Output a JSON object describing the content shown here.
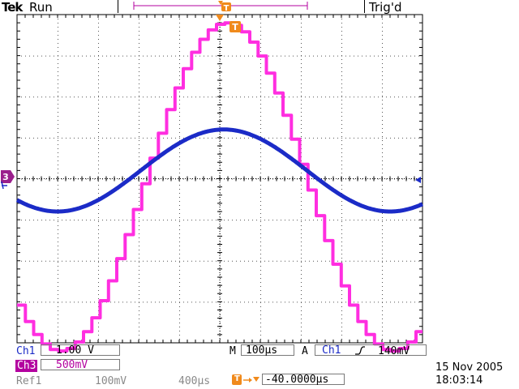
{
  "header": {
    "brand": "Tek",
    "acquisition_status": "Run",
    "trigger_status": "Trig'd"
  },
  "markers": {
    "trigger_position": "T",
    "trigger_time": "T",
    "ch3_ground": "3"
  },
  "readouts": {
    "ch1": {
      "label": "Ch1",
      "scale": "1.00 V"
    },
    "ch3": {
      "label": "Ch3",
      "scale": "500mV"
    },
    "ref1": {
      "label": "Ref1",
      "scale": "100mV",
      "time": "400µs"
    },
    "horizontal": {
      "mode": "M",
      "scale": "100µs"
    },
    "trigger": {
      "mode": "A",
      "source": "Ch1",
      "slope": "rising",
      "level": "140mV"
    },
    "delay": {
      "value": "-40.0000µs"
    }
  },
  "timestamp": {
    "date": "15 Nov 2005",
    "time": "18:03:14"
  },
  "colors": {
    "ch1": "#1b2bc7",
    "ch3": "#ff2ee0",
    "trigger": "#f08a1c",
    "grid": "#000000"
  },
  "waveforms": {
    "ch1": {
      "shape": "sine",
      "amplitude_div": 1.0,
      "offset_div": 0.2,
      "period_div": 8.2,
      "phase_div": 1.05
    },
    "ch3": {
      "shape": "stepped-sine",
      "amplitude_div": 4.0,
      "offset_div": -0.2,
      "period_div": 8.2,
      "phase_div": 1.05,
      "steps_per_period": 40
    }
  }
}
